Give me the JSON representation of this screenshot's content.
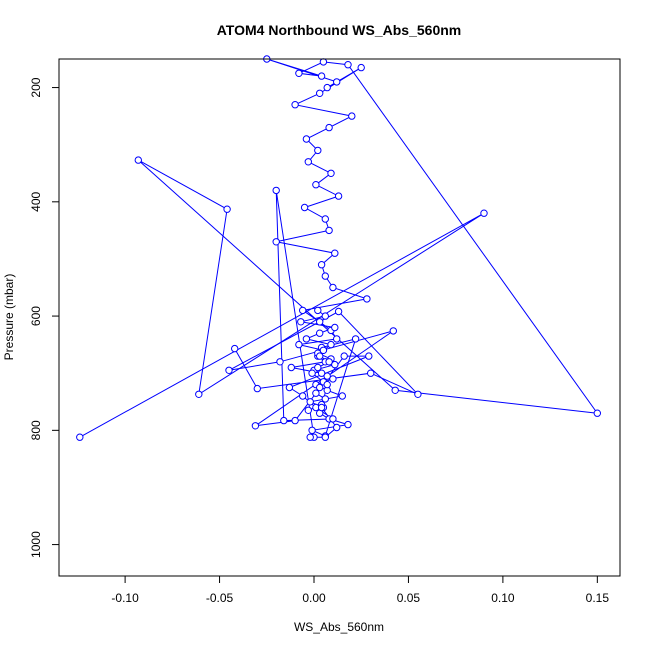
{
  "chart_data": {
    "type": "line",
    "title": "ATOM4 Northbound WS_Abs_560nm",
    "xlabel": "WS_Abs_560nm",
    "ylabel": "Pressure (mbar)",
    "xlim": [
      -0.135,
      0.162
    ],
    "ylim": [
      1055,
      150
    ],
    "y_inverted": true,
    "x_ticks": [
      -0.1,
      -0.05,
      0.0,
      0.05,
      0.1,
      0.15
    ],
    "x_tick_labels": [
      "-0.10",
      "-0.05",
      "0.00",
      "0.05",
      "0.10",
      "0.15"
    ],
    "y_ticks": [
      200,
      400,
      600,
      800,
      1000
    ],
    "y_tick_labels": [
      "200",
      "400",
      "600",
      "800",
      "1000"
    ],
    "grid": false,
    "legend": "none",
    "line_color": "#0000ff",
    "marker": "open-circle",
    "series": [
      {
        "x": [
          -0.124,
          0.09,
          -0.061,
          -0.046,
          -0.093,
          0.043,
          0.15,
          0.018,
          0.005,
          -0.008,
          0.004,
          -0.025,
          0.012,
          0.007,
          0.025,
          0.003,
          -0.01,
          0.02,
          0.008,
          -0.004,
          0.002,
          -0.003,
          0.009,
          0.001,
          0.013,
          -0.005,
          0.006,
          0.008,
          -0.02,
          0.011,
          0.004,
          0.006,
          0.01,
          0.028,
          -0.006,
          0.003,
          0.009,
          0.012,
          -0.008,
          0.005,
          0.002,
          0.006,
          -0.012,
          0.004,
          0.01,
          0.001,
          0.007,
          0.015,
          -0.002,
          0.005,
          0.003,
          0.008,
          0.018,
          -0.001,
          0.006,
          0.022,
          0.004,
          0.002,
          0.009,
          0.011,
          0.0,
          0.007,
          0.005,
          0.003,
          0.001,
          0.006,
          0.004,
          -0.003
        ],
        "y": [
          812,
          420,
          737,
          413,
          327,
          730,
          770,
          160,
          155,
          175,
          180,
          150,
          190,
          200,
          165,
          210,
          230,
          250,
          270,
          290,
          310,
          330,
          350,
          370,
          390,
          410,
          430,
          450,
          470,
          490,
          510,
          530,
          550,
          570,
          590,
          610,
          625,
          640,
          650,
          660,
          670,
          680,
          690,
          700,
          710,
          720,
          730,
          740,
          750,
          760,
          770,
          780,
          790,
          800,
          810,
          640,
          655,
          665,
          675,
          685,
          695,
          705,
          715,
          725,
          735,
          745,
          755,
          765
        ]
      },
      {
        "x": [
          -0.042,
          -0.03,
          0.03,
          0.055,
          0.013,
          -0.045,
          -0.018,
          0.042,
          -0.031,
          -0.01,
          0.016,
          0.029,
          -0.013,
          -0.006,
          0.001,
          0.01,
          -0.016,
          -0.02,
          0.0,
          -0.002,
          0.006,
          0.012,
          0.004,
          0.007,
          -0.001,
          0.002,
          0.008,
          0.003,
          0.005,
          0.009,
          -0.004,
          0.003,
          0.011,
          -0.007,
          0.006,
          0.002
        ],
        "y": [
          657,
          727,
          700,
          737,
          592,
          695,
          680,
          626,
          792,
          783,
          670,
          670,
          725,
          740,
          760,
          780,
          783,
          380,
          812,
          812,
          812,
          795,
          760,
          720,
          700,
          690,
          680,
          670,
          660,
          650,
          640,
          630,
          620,
          610,
          600,
          590
        ]
      }
    ]
  }
}
